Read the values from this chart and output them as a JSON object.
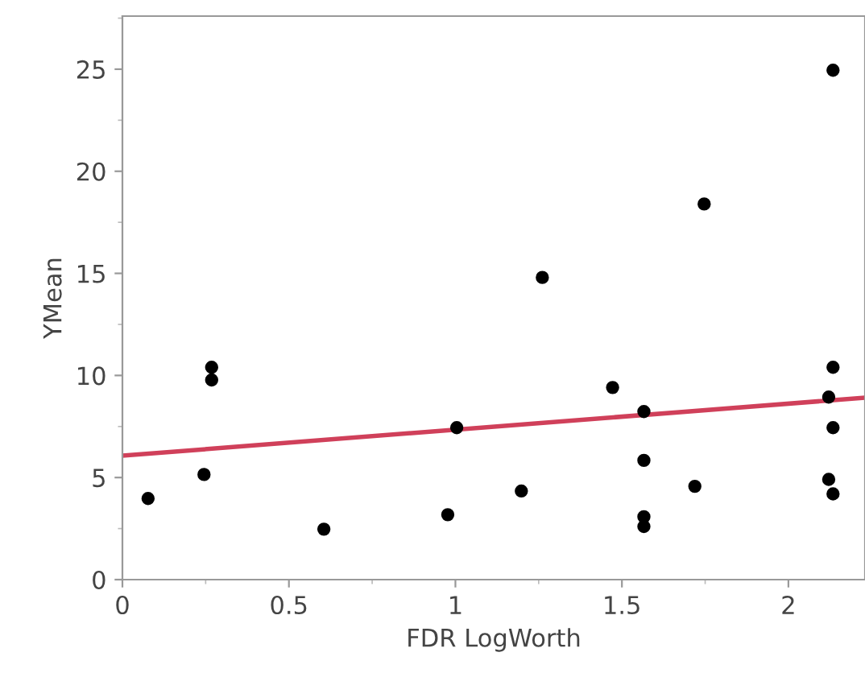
{
  "chart_data": {
    "type": "scatter",
    "xlabel": "FDR LogWorth",
    "ylabel": "YMean",
    "xlim": [
      0,
      2.23
    ],
    "ylim": [
      0,
      27.6
    ],
    "xticks": [
      0,
      0.5,
      1,
      1.5,
      2
    ],
    "yticks": [
      0,
      5,
      10,
      15,
      20,
      25
    ],
    "grid": false,
    "series": [
      {
        "color": "#000000",
        "marker": "circle",
        "x": [
          0.077,
          0.245,
          0.268,
          0.268,
          0.605,
          0.977,
          1.004,
          1.198,
          1.261,
          1.472,
          1.566,
          1.566,
          1.566,
          1.566,
          1.719,
          1.747,
          2.134,
          2.134,
          2.121,
          2.134,
          2.121,
          2.134
        ],
        "values": [
          3.97,
          5.15,
          10.4,
          9.78,
          2.47,
          3.18,
          7.44,
          4.34,
          14.8,
          9.41,
          8.23,
          5.84,
          3.08,
          2.6,
          4.57,
          18.4,
          24.95,
          10.4,
          8.94,
          7.44,
          4.91,
          4.2
        ]
      },
      {
        "type": "line",
        "color": "#d0405a",
        "x": [
          0,
          2.23
        ],
        "values": [
          6.07,
          8.91
        ]
      }
    ]
  }
}
